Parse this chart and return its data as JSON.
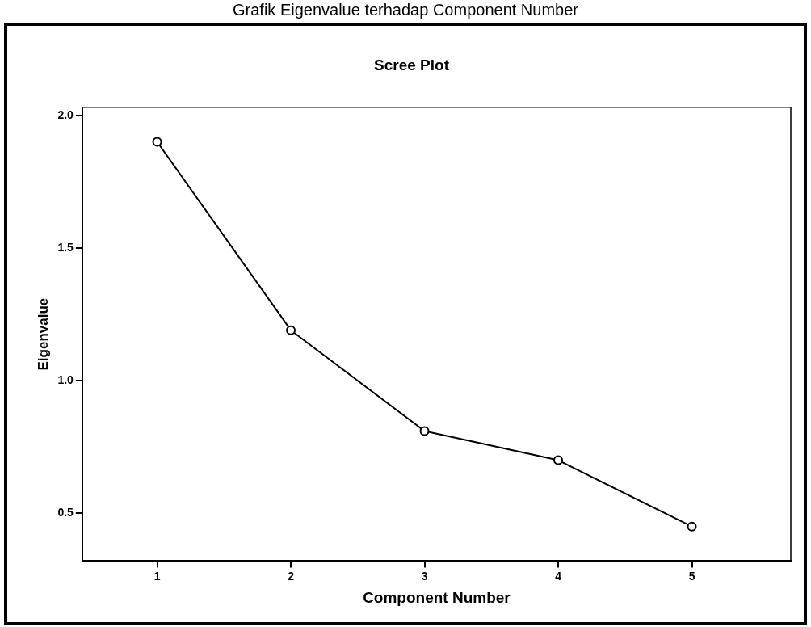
{
  "chart_data": {
    "type": "line",
    "title": "Scree Plot",
    "xlabel": "Component Number",
    "ylabel": "Eigenvalue",
    "annotations": [
      "Grafik Eigenvalue terhadap Component Number"
    ],
    "x": [
      1,
      2,
      3,
      4,
      5
    ],
    "series": [
      {
        "color": "#000000",
        "values": [
          1.9,
          1.19,
          0.81,
          0.7,
          0.45
        ]
      }
    ],
    "xlim": [
      0.44,
      5.74
    ],
    "xticks": [
      1,
      2,
      3,
      4,
      5
    ],
    "ylim": [
      0.32,
      2.03
    ],
    "yticks": [
      {
        "value": 0.5,
        "label": "0.5"
      },
      {
        "value": 1.0,
        "label": "1.0"
      },
      {
        "value": 1.5,
        "label": "1.5"
      },
      {
        "value": 2.0,
        "label": "2.0"
      }
    ],
    "grid": false,
    "legend": false,
    "marker": "circle",
    "line_style": "solid"
  }
}
